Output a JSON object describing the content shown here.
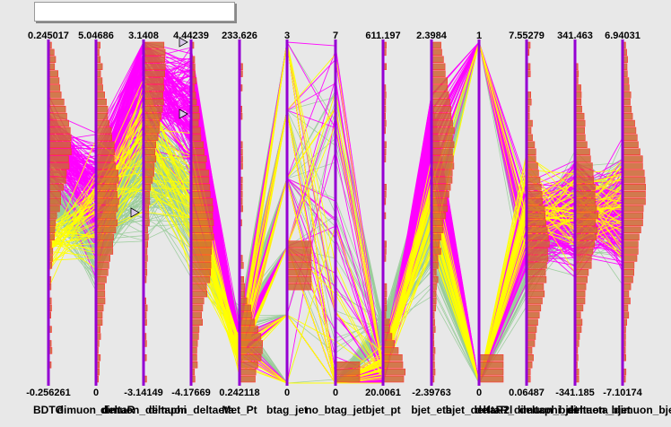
{
  "window": {
    "title_text": ""
  },
  "colors": {
    "background": "#e8e8e8",
    "axis": "#9400d3",
    "series_a": "#99cc99",
    "series_b": "#ff00ff",
    "series_c": "#ffff00",
    "hist_fill": "#cc6633",
    "hist_edge": "#ff3333"
  },
  "chart_data": {
    "type": "parallel_coordinates",
    "title": "",
    "grid": false,
    "legend": "none",
    "axes": [
      {
        "name": "BDTG",
        "max": "0.245017",
        "min": "-0.256261"
      },
      {
        "name": "dimuon_deltaR",
        "max": "5.04686",
        "min": "0"
      },
      {
        "name": "dimuon_deltaphi",
        "max": "3.1408",
        "min": "-3.14149"
      },
      {
        "name": "dimuon_deltaeta",
        "max": "4.44239",
        "min": "-4.17669"
      },
      {
        "name": "Met_Pt",
        "max": "233.626",
        "min": "0.242118"
      },
      {
        "name": "btag_jet",
        "max": "3",
        "min": "0"
      },
      {
        "name": "no_btag_jet",
        "max": "7",
        "min": "0"
      },
      {
        "name": "bjet_pt",
        "max": "611.197",
        "min": "20.0061"
      },
      {
        "name": "bjet_eta",
        "max": "2.3984",
        "min": "-2.39763"
      },
      {
        "name": "bjet_deltaR2l",
        "max": "1",
        "min": "0"
      },
      {
        "name": "deltaR_dimuon_bjet",
        "max": "7.55279",
        "min": "0.06487"
      },
      {
        "name": "deltaphi_dimuon_bjet",
        "max": "341.463",
        "min": "-341.185"
      },
      {
        "name": "deltaeta_dimuon_bjet",
        "max": "6.94031",
        "min": "-7.10174"
      }
    ],
    "series": [
      {
        "color": "#99cc99"
      },
      {
        "color": "#ff00ff"
      },
      {
        "color": "#ffff00"
      }
    ]
  }
}
